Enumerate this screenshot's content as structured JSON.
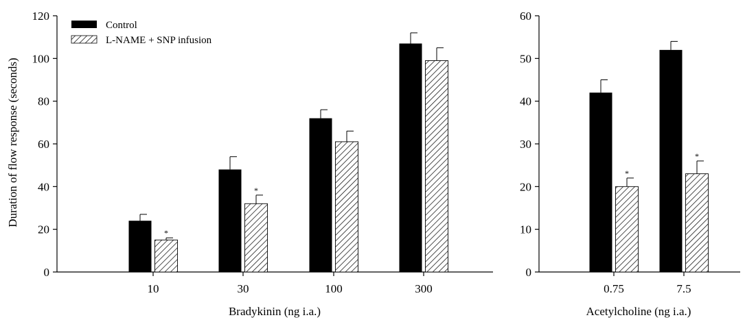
{
  "y_axis_label": "Duration of flow response (seconds)",
  "legend": {
    "position": "top-left",
    "items": [
      {
        "label": "Control",
        "pattern": "solid",
        "color": "#000000"
      },
      {
        "label": "L-NAME + SNP infusion",
        "pattern": "hatched",
        "color": "#000000"
      }
    ]
  },
  "chart_data": [
    {
      "type": "bar",
      "title": "",
      "xlabel": "Bradykinin (ng i.a.)",
      "ylabel": "Duration of flow response (seconds)",
      "ylim": [
        0,
        120
      ],
      "yticks": [
        "0",
        "20",
        "40",
        "60",
        "80",
        "100",
        "120"
      ],
      "categories": [
        "10",
        "30",
        "100",
        "300"
      ],
      "series": [
        {
          "name": "Control",
          "pattern": "solid",
          "values": [
            24,
            48,
            72,
            107
          ],
          "errors": [
            3,
            6,
            4,
            5
          ]
        },
        {
          "name": "L-NAME + SNP infusion",
          "pattern": "hatched",
          "values": [
            15,
            32,
            61,
            99
          ],
          "errors": [
            1,
            4,
            5,
            6
          ]
        }
      ],
      "significance": [
        {
          "category": "10",
          "series": "L-NAME + SNP infusion",
          "mark": "*"
        },
        {
          "category": "30",
          "series": "L-NAME + SNP infusion",
          "mark": "*"
        }
      ],
      "grid": false
    },
    {
      "type": "bar",
      "title": "",
      "xlabel": "Acetylcholine (ng i.a.)",
      "ylabel": "",
      "ylim": [
        0,
        60
      ],
      "yticks": [
        "0",
        "10",
        "20",
        "30",
        "40",
        "50",
        "60"
      ],
      "categories": [
        "0.75",
        "7.5"
      ],
      "series": [
        {
          "name": "Control",
          "pattern": "solid",
          "values": [
            42,
            52
          ],
          "errors": [
            3,
            2
          ]
        },
        {
          "name": "L-NAME + SNP infusion",
          "pattern": "hatched",
          "values": [
            20,
            23
          ],
          "errors": [
            2,
            3
          ]
        }
      ],
      "significance": [
        {
          "category": "0.75",
          "series": "L-NAME + SNP infusion",
          "mark": "*"
        },
        {
          "category": "7.5",
          "series": "L-NAME + SNP infusion",
          "mark": "*"
        }
      ],
      "grid": false
    }
  ]
}
